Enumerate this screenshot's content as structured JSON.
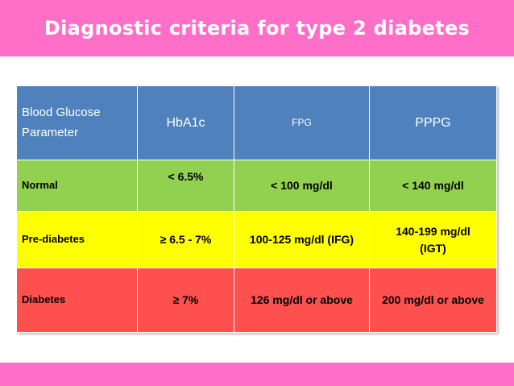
{
  "title": "Diagnostic criteria for type 2 diabetes",
  "colors": {
    "title_bar": "#ff6ec7",
    "header_row": "#4f81bd",
    "normal_row": "#92d050",
    "prediabetes_row": "#ffff00",
    "diabetes_row": "#ff5050"
  },
  "table": {
    "headers": [
      "Blood Glucose\nParameter",
      "HbA1c",
      "FPG",
      "PPPG"
    ],
    "rows": [
      [
        "Normal",
        "< 6.5%",
        "< 100 mg/dl",
        "< 140 mg/dl"
      ],
      [
        "Pre-diabetes",
        "≥ 6.5 - 7%",
        "100-125 mg/dl (IFG)",
        "140-199 mg/dl\n(IGT)"
      ],
      [
        "Diabetes",
        "≥ 7%",
        "126 mg/dl or above",
        "200 mg/dl or above"
      ]
    ]
  }
}
